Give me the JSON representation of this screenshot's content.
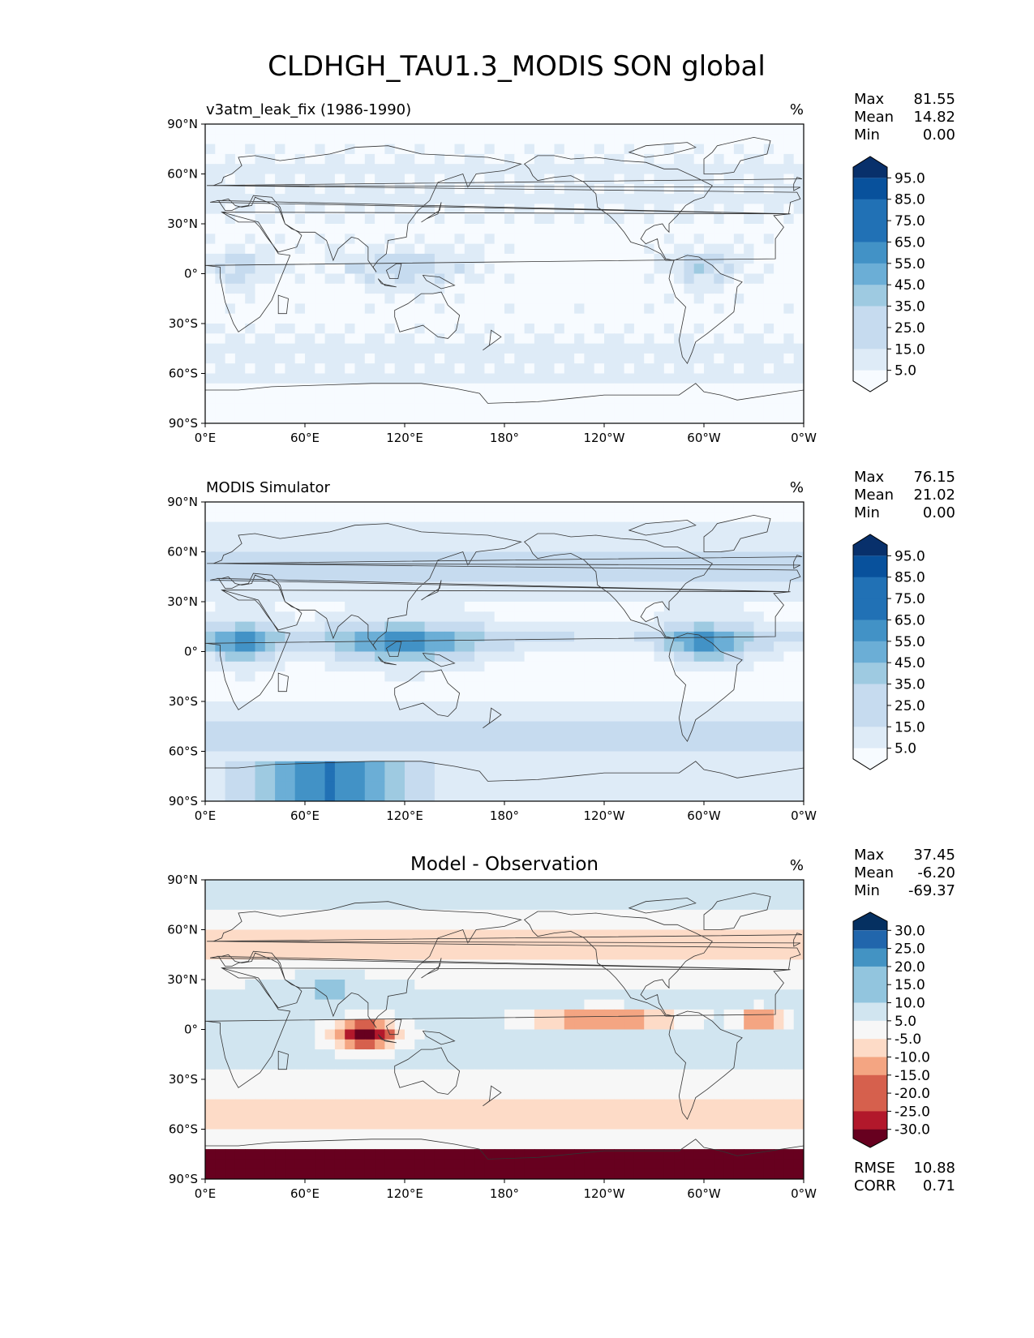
{
  "figure": {
    "title": "CLDHGH_TAU1.3_MODIS SON global"
  },
  "axes": {
    "lat_ticks": [
      "90°N",
      "60°N",
      "30°N",
      "0°",
      "30°S",
      "60°S",
      "90°S"
    ],
    "lon_ticks": [
      "0°E",
      "60°E",
      "120°E",
      "180°",
      "120°W",
      "60°W",
      "0°W"
    ]
  },
  "colors": {
    "blues": [
      "#f7fbff",
      "#deebf7",
      "#c6dbef",
      "#9ecae1",
      "#6baed6",
      "#4292c6",
      "#2171b5",
      "#08519c",
      "#08306b"
    ],
    "diff": [
      "#67001f",
      "#b2182b",
      "#d6604d",
      "#f4a582",
      "#fddbc7",
      "#f7f7f7",
      "#d1e5f0",
      "#92c5de",
      "#4393c3",
      "#2166ac",
      "#053061"
    ],
    "land_line": "#333333"
  },
  "panels": [
    {
      "title": "v3atm_leak_fix (1986-1990)",
      "title_style": "left",
      "units": "%",
      "stats": [
        {
          "label": "Max",
          "value": "81.55"
        },
        {
          "label": "Mean",
          "value": "14.82"
        },
        {
          "label": "Min",
          "value": "0.00"
        }
      ],
      "colorbar": {
        "type": "seq",
        "labels": [
          "95.0",
          "85.0",
          "75.0",
          "65.0",
          "55.0",
          "45.0",
          "35.0",
          "25.0",
          "15.0",
          "5.0"
        ]
      }
    },
    {
      "title": "MODIS Simulator",
      "title_style": "left",
      "units": "%",
      "stats": [
        {
          "label": "Max",
          "value": "76.15"
        },
        {
          "label": "Mean",
          "value": "21.02"
        },
        {
          "label": "Min",
          "value": "0.00"
        }
      ],
      "colorbar": {
        "type": "seq",
        "labels": [
          "95.0",
          "85.0",
          "75.0",
          "65.0",
          "55.0",
          "45.0",
          "35.0",
          "25.0",
          "15.0",
          "5.0"
        ]
      }
    },
    {
      "title": "Model - Observation",
      "title_style": "center",
      "units": "%",
      "stats": [
        {
          "label": "Max",
          "value": "37.45"
        },
        {
          "label": "Mean",
          "value": "-6.20"
        },
        {
          "label": "Min",
          "value": "-69.37"
        }
      ],
      "colorbar": {
        "type": "div",
        "labels": [
          "30.0",
          "25.0",
          "20.0",
          "15.0",
          "10.0",
          "5.0",
          "-5.0",
          "-10.0",
          "-15.0",
          "-20.0",
          "-25.0",
          "-30.0"
        ]
      },
      "extra_stats": [
        {
          "label": "RMSE",
          "value": "10.88"
        },
        {
          "label": "CORR",
          "value": "0.71"
        }
      ]
    }
  ]
}
